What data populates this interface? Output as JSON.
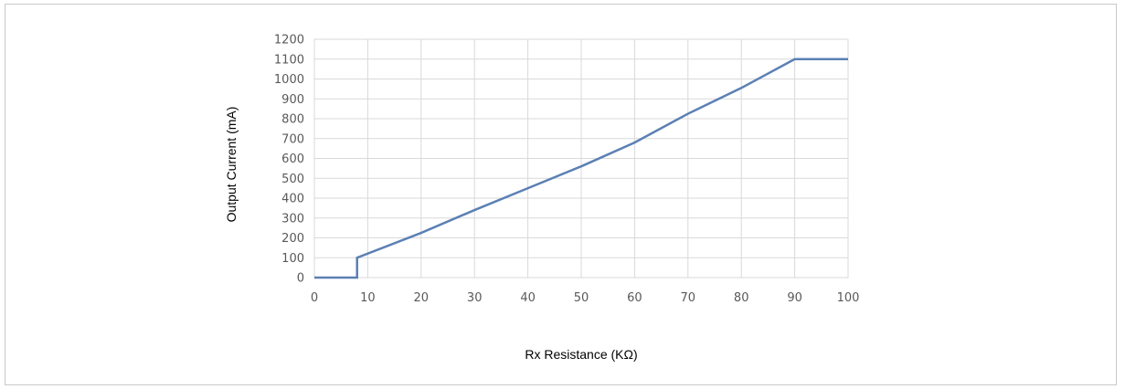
{
  "chart_data": {
    "type": "line",
    "title": "",
    "xlabel": "Rx Resistance (KΩ)",
    "ylabel": "Output Current (mA)",
    "xlim": [
      0,
      100
    ],
    "ylim": [
      0,
      1200
    ],
    "xticks": [
      0,
      10,
      20,
      30,
      40,
      50,
      60,
      70,
      80,
      90,
      100
    ],
    "yticks": [
      0,
      100,
      200,
      300,
      400,
      500,
      600,
      700,
      800,
      900,
      1000,
      1100,
      1200
    ],
    "grid": true,
    "legend": "none",
    "series": [
      {
        "color": "#5b80b4",
        "x": [
          0,
          8,
          8,
          20,
          30,
          40,
          50,
          60,
          70,
          80,
          90,
          100
        ],
        "y": [
          0,
          0,
          100,
          225,
          340,
          450,
          560,
          680,
          825,
          955,
          1100,
          1100
        ]
      }
    ]
  }
}
